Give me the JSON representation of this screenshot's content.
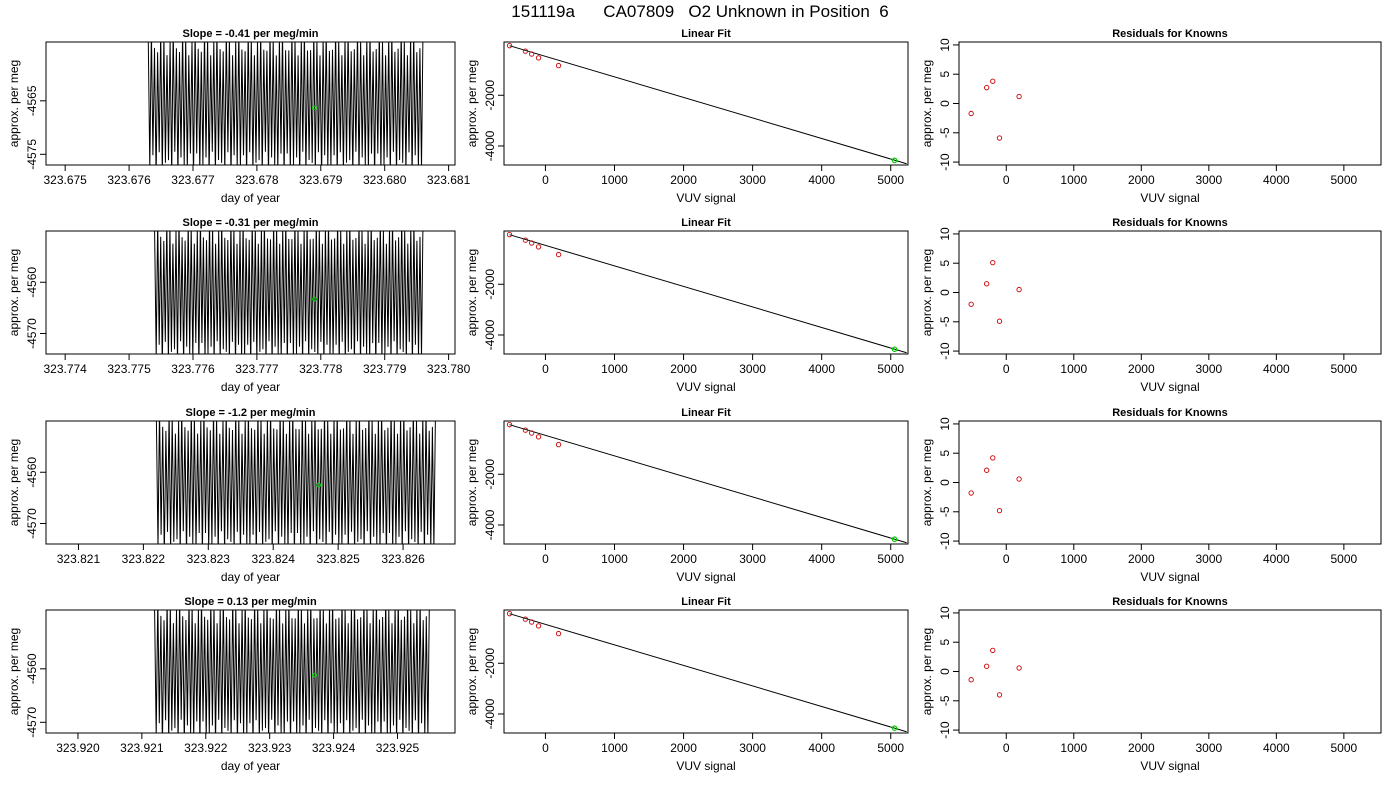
{
  "main_title": "151119a      CA07809   O2 Unknown in Position  6",
  "colors": {
    "line": "#000000",
    "known_points": "#cc0000",
    "unknown_point": "#00cc00"
  },
  "chart_data": [
    {
      "type": "line",
      "row": 0,
      "col": 0,
      "title": "Slope =  -0.41  per meg/min",
      "xlabel": "day of year",
      "ylabel": "approx. per meg",
      "xlim": [
        323.6747,
        323.6811
      ],
      "ylim": [
        -4577,
        -4554
      ],
      "xticks": [
        "323.675",
        "323.676",
        "323.677",
        "323.678",
        "323.679",
        "323.680",
        "323.681"
      ],
      "yticks": [
        "-4565",
        "-4575"
      ],
      "signal": {
        "x_start": 323.6763,
        "x_end": 323.6806,
        "y_high": -4554,
        "y_low": -4577,
        "cycles": 88
      },
      "marker": {
        "x": 323.6789,
        "y": -4566.3
      }
    },
    {
      "type": "scatter",
      "row": 0,
      "col": 1,
      "title": "Linear Fit",
      "xlabel": "VUV signal",
      "ylabel": "approx. per meg",
      "xlim": [
        -600,
        5250
      ],
      "ylim": [
        -4750,
        100
      ],
      "xticks": [
        "0",
        "1000",
        "2000",
        "3000",
        "4000",
        "5000"
      ],
      "yticks": [
        "-2000",
        "-4000"
      ],
      "knowns": {
        "x": [
          -520,
          -290,
          -200,
          -100,
          190
        ],
        "y": [
          -45,
          -260,
          -375,
          -525,
          -830
        ]
      },
      "unknown": {
        "x": 5055,
        "y": -4567
      },
      "fit_line": {
        "x": [
          -520,
          5230
        ],
        "y": [
          -45,
          -4700
        ]
      }
    },
    {
      "type": "scatter",
      "row": 0,
      "col": 2,
      "title": "Residuals for Knowns",
      "xlabel": "VUV signal",
      "ylabel": "approx. per meg",
      "xlim": [
        -700,
        5550
      ],
      "ylim": [
        -10.5,
        10.5
      ],
      "xticks": [
        "0",
        "1000",
        "2000",
        "3000",
        "4000",
        "5000"
      ],
      "yticks": [
        "-10",
        "-5",
        "0",
        "5",
        "10"
      ],
      "points": {
        "x": [
          -520,
          -290,
          -200,
          -100,
          190
        ],
        "y": [
          -1.7,
          2.7,
          3.8,
          -5.9,
          1.2
        ]
      }
    },
    {
      "type": "line",
      "row": 1,
      "col": 0,
      "title": "Slope =  -0.31  per meg/min",
      "xlabel": "day of year",
      "ylabel": "approx. per meg",
      "xlim": [
        323.7737,
        323.7801
      ],
      "ylim": [
        -4574,
        -4550
      ],
      "xticks": [
        "323.774",
        "323.775",
        "323.776",
        "323.777",
        "323.778",
        "323.779",
        "323.780"
      ],
      "yticks": [
        "-4560",
        "-4570"
      ],
      "signal": {
        "x_start": 323.7754,
        "x_end": 323.7796,
        "y_high": -4550,
        "y_low": -4574,
        "cycles": 88
      },
      "marker": {
        "x": 323.7779,
        "y": -4563.3
      }
    },
    {
      "type": "scatter",
      "row": 1,
      "col": 1,
      "title": "Linear Fit",
      "xlabel": "VUV signal",
      "ylabel": "approx. per meg",
      "xlim": [
        -600,
        5250
      ],
      "ylim": [
        -4750,
        100
      ],
      "xticks": [
        "0",
        "1000",
        "2000",
        "3000",
        "4000",
        "5000"
      ],
      "yticks": [
        "-2000",
        "-4000"
      ],
      "knowns": {
        "x": [
          -520,
          -290,
          -200,
          -100,
          190
        ],
        "y": [
          -45,
          -260,
          -375,
          -525,
          -830
        ]
      },
      "unknown": {
        "x": 5055,
        "y": -4563
      },
      "fit_line": {
        "x": [
          -520,
          5230
        ],
        "y": [
          -45,
          -4700
        ]
      }
    },
    {
      "type": "scatter",
      "row": 1,
      "col": 2,
      "title": "Residuals for Knowns",
      "xlabel": "VUV signal",
      "ylabel": "approx. per meg",
      "xlim": [
        -700,
        5550
      ],
      "ylim": [
        -10.5,
        10.5
      ],
      "xticks": [
        "0",
        "1000",
        "2000",
        "3000",
        "4000",
        "5000"
      ],
      "yticks": [
        "-10",
        "-5",
        "0",
        "5",
        "10"
      ],
      "points": {
        "x": [
          -520,
          -290,
          -200,
          -100,
          190
        ],
        "y": [
          -2.0,
          1.5,
          5.1,
          -4.9,
          0.5
        ]
      }
    },
    {
      "type": "line",
      "row": 2,
      "col": 0,
      "title": "Slope =  -1.2  per meg/min",
      "xlabel": "day of year",
      "ylabel": "approx. per meg",
      "xlim": [
        323.8205,
        323.8268
      ],
      "ylim": [
        -4574,
        -4550
      ],
      "xticks": [
        "323.821",
        "323.822",
        "323.823",
        "323.824",
        "323.825",
        "323.826"
      ],
      "yticks": [
        "-4560",
        "-4570"
      ],
      "signal": {
        "x_start": 323.8222,
        "x_end": 323.8265,
        "y_high": -4550,
        "y_low": -4574,
        "cycles": 88
      },
      "marker": {
        "x": 323.8247,
        "y": -4562.5
      }
    },
    {
      "type": "scatter",
      "row": 2,
      "col": 1,
      "title": "Linear Fit",
      "xlabel": "VUV signal",
      "ylabel": "approx. per meg",
      "xlim": [
        -600,
        5250
      ],
      "ylim": [
        -4750,
        100
      ],
      "xticks": [
        "0",
        "1000",
        "2000",
        "3000",
        "4000",
        "5000"
      ],
      "yticks": [
        "-2000",
        "-4000"
      ],
      "knowns": {
        "x": [
          -520,
          -290,
          -200,
          -100,
          190
        ],
        "y": [
          -45,
          -260,
          -375,
          -525,
          -830
        ]
      },
      "unknown": {
        "x": 5055,
        "y": -4562
      },
      "fit_line": {
        "x": [
          -520,
          5230
        ],
        "y": [
          -45,
          -4700
        ]
      }
    },
    {
      "type": "scatter",
      "row": 2,
      "col": 2,
      "title": "Residuals for Knowns",
      "xlabel": "VUV signal",
      "ylabel": "approx. per meg",
      "xlim": [
        -700,
        5550
      ],
      "ylim": [
        -10.5,
        10.5
      ],
      "xticks": [
        "0",
        "1000",
        "2000",
        "3000",
        "4000",
        "5000"
      ],
      "yticks": [
        "-10",
        "-5",
        "0",
        "5",
        "10"
      ],
      "points": {
        "x": [
          -520,
          -290,
          -200,
          -100,
          190
        ],
        "y": [
          -1.8,
          2.1,
          4.2,
          -4.8,
          0.6
        ]
      }
    },
    {
      "type": "line",
      "row": 3,
      "col": 0,
      "title": "Slope =  0.13  per meg/min",
      "xlabel": "day of year",
      "ylabel": "approx. per meg",
      "xlim": [
        323.9195,
        323.9259
      ],
      "ylim": [
        -4572,
        -4549
      ],
      "xticks": [
        "323.920",
        "323.921",
        "323.922",
        "323.923",
        "323.924",
        "323.925"
      ],
      "yticks": [
        "-4560",
        "-4570"
      ],
      "signal": {
        "x_start": 323.9212,
        "x_end": 323.9255,
        "y_high": -4549,
        "y_low": -4572,
        "cycles": 88
      },
      "marker": {
        "x": 323.9237,
        "y": -4561.2
      }
    },
    {
      "type": "scatter",
      "row": 3,
      "col": 1,
      "title": "Linear Fit",
      "xlabel": "VUV signal",
      "ylabel": "approx. per meg",
      "xlim": [
        -600,
        5250
      ],
      "ylim": [
        -4750,
        100
      ],
      "xticks": [
        "0",
        "1000",
        "2000",
        "3000",
        "4000",
        "5000"
      ],
      "yticks": [
        "-2000",
        "-4000"
      ],
      "knowns": {
        "x": [
          -520,
          -290,
          -200,
          -100,
          190
        ],
        "y": [
          -45,
          -260,
          -375,
          -525,
          -830
        ]
      },
      "unknown": {
        "x": 5055,
        "y": -4561
      },
      "fit_line": {
        "x": [
          -520,
          5230
        ],
        "y": [
          -45,
          -4700
        ]
      }
    },
    {
      "type": "scatter",
      "row": 3,
      "col": 2,
      "title": "Residuals for Knowns",
      "xlabel": "VUV signal",
      "ylabel": "approx. per meg",
      "xlim": [
        -700,
        5550
      ],
      "ylim": [
        -10.5,
        10.5
      ],
      "xticks": [
        "0",
        "1000",
        "2000",
        "3000",
        "4000",
        "5000"
      ],
      "yticks": [
        "-10",
        "-5",
        "0",
        "5",
        "10"
      ],
      "points": {
        "x": [
          -520,
          -290,
          -200,
          -100,
          190
        ],
        "y": [
          -1.4,
          0.9,
          3.6,
          -4.0,
          0.6
        ]
      }
    }
  ]
}
